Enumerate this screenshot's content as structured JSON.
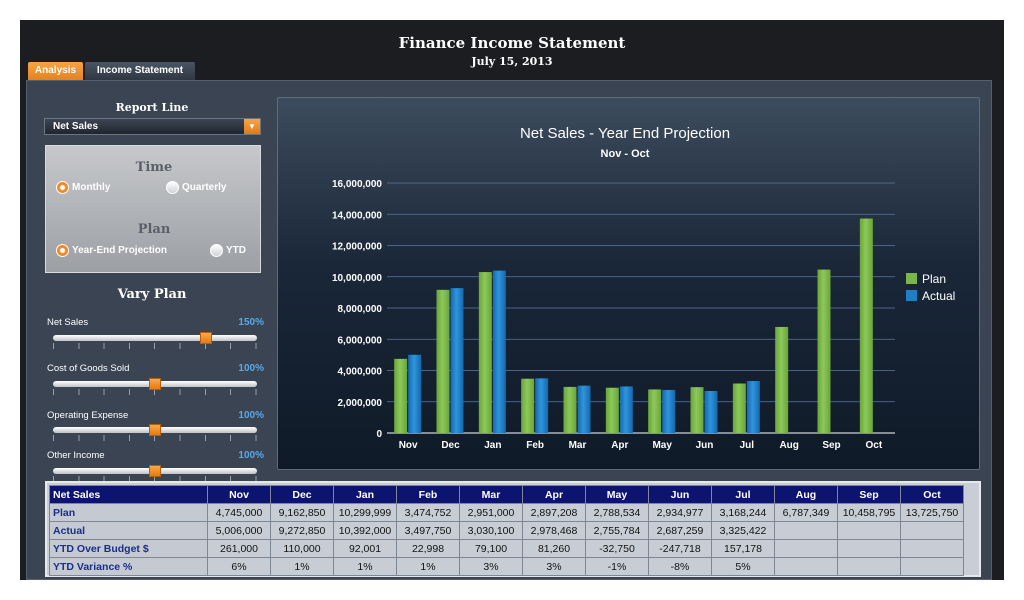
{
  "header": {
    "title": "Finance Income Statement",
    "date": "July 15, 2013"
  },
  "tabs": [
    {
      "label": "Analysis",
      "active": true
    },
    {
      "label": "Income Statement",
      "active": false
    }
  ],
  "left_panel": {
    "report_line_label": "Report Line",
    "report_line_value": "Net Sales",
    "time_heading": "Time",
    "time_options": [
      {
        "label": "Monthly",
        "selected": true
      },
      {
        "label": "Quarterly",
        "selected": false
      }
    ],
    "plan_heading": "Plan",
    "plan_options": [
      {
        "label": "Year-End Projection",
        "selected": true
      },
      {
        "label": "YTD",
        "selected": false
      }
    ],
    "vary_plan_title": "Vary Plan",
    "sliders": [
      {
        "label": "Net Sales",
        "value_label": "150%",
        "value": 150
      },
      {
        "label": "Cost of Goods Sold",
        "value_label": "100%",
        "value": 100
      },
      {
        "label": "Operating Expense",
        "value_label": "100%",
        "value": 100
      },
      {
        "label": "Other Income",
        "value_label": "100%",
        "value": 100
      }
    ],
    "slider_range": [
      0,
      200
    ]
  },
  "colors": {
    "accent": "#f08a24",
    "plan": "#7ab648",
    "actual": "#1e7fc6",
    "table_header": "#0c1470"
  },
  "chart_data": {
    "type": "bar",
    "title": "Net Sales - Year End Projection",
    "subtitle": "Nov - Oct",
    "categories": [
      "Nov",
      "Dec",
      "Jan",
      "Feb",
      "Mar",
      "Apr",
      "May",
      "Jun",
      "Jul",
      "Aug",
      "Sep",
      "Oct"
    ],
    "series": [
      {
        "name": "Plan",
        "values": [
          4745000,
          9162850,
          10299999,
          3474752,
          2951000,
          2897208,
          2788534,
          2934977,
          3168244,
          6787349,
          10458795,
          13725750
        ]
      },
      {
        "name": "Actual",
        "values": [
          5006000,
          9272850,
          10392000,
          3497750,
          3030100,
          2978468,
          2755784,
          2687259,
          3325422,
          null,
          null,
          null
        ]
      }
    ],
    "y_ticks": [
      "0",
      "2,000,000",
      "4,000,000",
      "6,000,000",
      "8,000,000",
      "10,000,000",
      "12,000,000",
      "14,000,000",
      "16,000,000"
    ],
    "ylim": [
      0,
      16000000
    ],
    "grid": true,
    "legend_position": "right"
  },
  "table": {
    "header": [
      "Net Sales",
      "Nov",
      "Dec",
      "Jan",
      "Feb",
      "Mar",
      "Apr",
      "May",
      "Jun",
      "Jul",
      "Aug",
      "Sep",
      "Oct"
    ],
    "rows": [
      [
        "Plan",
        "4,745,000",
        "9,162,850",
        "10,299,999",
        "3,474,752",
        "2,951,000",
        "2,897,208",
        "2,788,534",
        "2,934,977",
        "3,168,244",
        "6,787,349",
        "10,458,795",
        "13,725,750"
      ],
      [
        "Actual",
        "5,006,000",
        "9,272,850",
        "10,392,000",
        "3,497,750",
        "3,030,100",
        "2,978,468",
        "2,755,784",
        "2,687,259",
        "3,325,422",
        "",
        "",
        ""
      ],
      [
        "YTD Over Budget $",
        "261,000",
        "110,000",
        "92,001",
        "22,998",
        "79,100",
        "81,260",
        "-32,750",
        "-247,718",
        "157,178",
        "",
        "",
        ""
      ],
      [
        "YTD Variance %",
        "6%",
        "1%",
        "1%",
        "1%",
        "3%",
        "3%",
        "-1%",
        "-8%",
        "5%",
        "",
        "",
        ""
      ]
    ]
  }
}
